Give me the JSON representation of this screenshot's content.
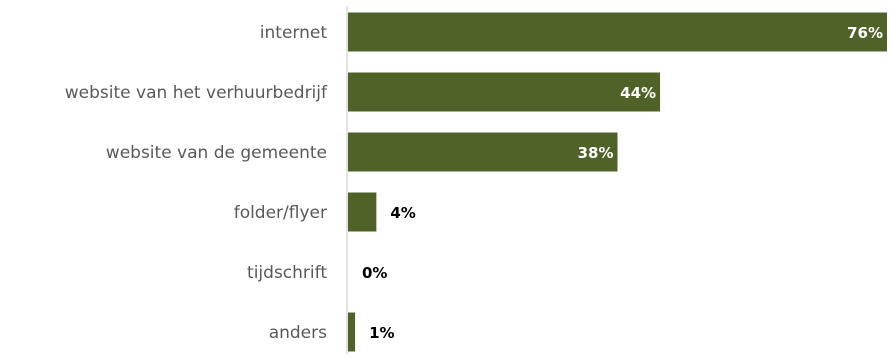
{
  "chart_data": {
    "type": "bar",
    "orientation": "horizontal",
    "categories": [
      "internet",
      "website van het verhuurbedrijf",
      "website van de gemeente",
      "folder/flyer",
      "tijdschrift",
      "anders"
    ],
    "values": [
      76,
      44,
      38,
      4,
      0,
      1
    ],
    "value_labels": [
      "76%",
      "44%",
      "38%",
      "4%",
      "0%",
      "1%"
    ],
    "xlim": [
      0,
      76
    ],
    "grid": false,
    "legend": "none",
    "colors": {
      "bar": "#4f6228",
      "axis": "#d9d9d9",
      "category_text": "#595959",
      "label_inside": "#ffffff",
      "label_outside": "#000000"
    }
  }
}
